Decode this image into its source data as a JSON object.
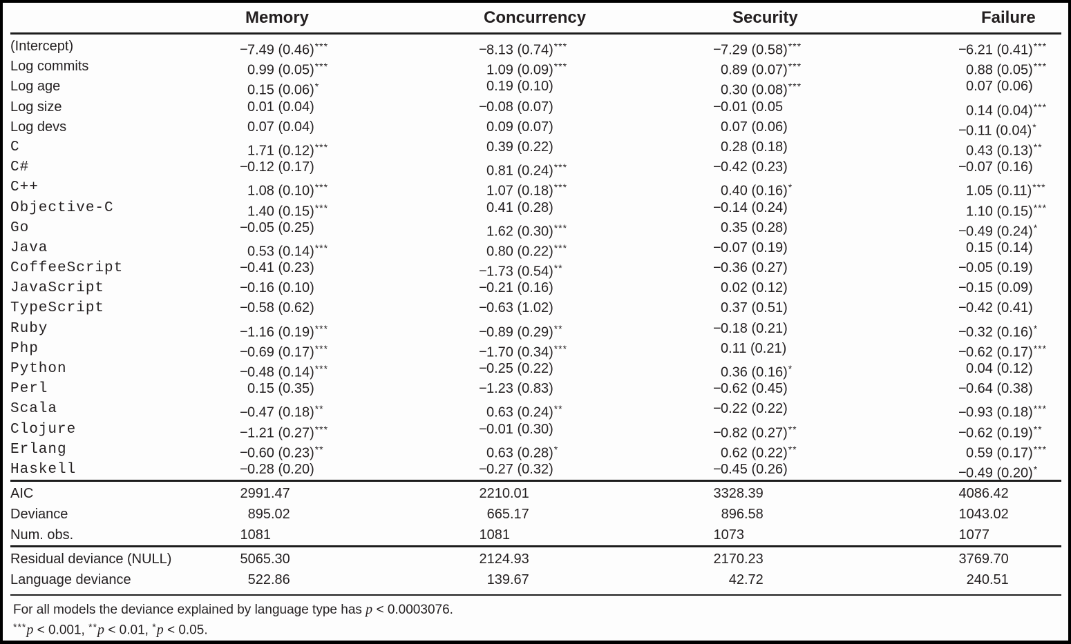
{
  "table": {
    "colors": {
      "text": "#231f20",
      "background": "#fdfdfd",
      "border": "#000000"
    },
    "columns": [
      "Memory",
      "Concurrency",
      "Security",
      "Failure"
    ],
    "coef_rows": [
      {
        "label": "(Intercept)",
        "mono": false,
        "values": [
          "−7.49 (0.46)***",
          "−8.13 (0.74)***",
          "−7.29 (0.58)***",
          "−6.21 (0.41)***"
        ]
      },
      {
        "label": "Log commits",
        "mono": false,
        "values": [
          "0.99 (0.05)***",
          "1.09 (0.09)***",
          "0.89 (0.07)***",
          "0.88 (0.05)***"
        ]
      },
      {
        "label": "Log age",
        "mono": false,
        "values": [
          "0.15 (0.06)*",
          "0.19 (0.10)",
          "0.30 (0.08)***",
          "0.07 (0.06)"
        ]
      },
      {
        "label": "Log size",
        "mono": false,
        "values": [
          "0.01 (0.04)",
          "−0.08 (0.07)",
          "−0.01 (0.05",
          "0.14 (0.04)***"
        ]
      },
      {
        "label": "Log devs",
        "mono": false,
        "values": [
          "0.07 (0.04)",
          "0.09 (0.07)",
          "0.07 (0.06)",
          "−0.11 (0.04)*"
        ]
      },
      {
        "label": "C",
        "mono": true,
        "values": [
          "1.71 (0.12)***",
          "0.39 (0.22)",
          "0.28 (0.18)",
          "0.43 (0.13)**"
        ]
      },
      {
        "label": "C#",
        "mono": true,
        "values": [
          "−0.12 (0.17)",
          "0.81 (0.24)***",
          "−0.42 (0.23)",
          "−0.07 (0.16)"
        ]
      },
      {
        "label": "C++",
        "mono": true,
        "values": [
          "1.08 (0.10)***",
          "1.07 (0.18)***",
          "0.40 (0.16)*",
          "1.05 (0.11)***"
        ]
      },
      {
        "label": "Objective-C",
        "mono": true,
        "values": [
          "1.40 (0.15)***",
          "0.41 (0.28)",
          "−0.14 (0.24)",
          "1.10 (0.15)***"
        ]
      },
      {
        "label": "Go",
        "mono": true,
        "values": [
          "−0.05 (0.25)",
          "1.62 (0.30)***",
          "0.35 (0.28)",
          "−0.49 (0.24)*"
        ]
      },
      {
        "label": "Java",
        "mono": true,
        "values": [
          "0.53 (0.14)***",
          "0.80 (0.22)***",
          "−0.07 (0.19)",
          "0.15 (0.14)"
        ]
      },
      {
        "label": "CoffeeScript",
        "mono": true,
        "values": [
          "−0.41 (0.23)",
          "−1.73 (0.54)**",
          "−0.36 (0.27)",
          "−0.05 (0.19)"
        ]
      },
      {
        "label": "JavaScript",
        "mono": true,
        "values": [
          "−0.16 (0.10)",
          "−0.21 (0.16)",
          "0.02 (0.12)",
          "−0.15 (0.09)"
        ]
      },
      {
        "label": "TypeScript",
        "mono": true,
        "values": [
          "−0.58 (0.62)",
          "−0.63 (1.02)",
          "0.37 (0.51)",
          "−0.42 (0.41)"
        ]
      },
      {
        "label": "Ruby",
        "mono": true,
        "values": [
          "−1.16 (0.19)***",
          "−0.89 (0.29)**",
          "−0.18 (0.21)",
          "−0.32 (0.16)*"
        ]
      },
      {
        "label": "Php",
        "mono": true,
        "values": [
          "−0.69 (0.17)***",
          "−1.70 (0.34)***",
          "0.11 (0.21)",
          "−0.62 (0.17)***"
        ]
      },
      {
        "label": "Python",
        "mono": true,
        "values": [
          "−0.48 (0.14)***",
          "−0.25 (0.22)",
          "0.36 (0.16)*",
          "0.04 (0.12)"
        ]
      },
      {
        "label": "Perl",
        "mono": true,
        "values": [
          "0.15 (0.35)",
          "−1.23 (0.83)",
          "−0.62 (0.45)",
          "−0.64 (0.38)"
        ]
      },
      {
        "label": "Scala",
        "mono": true,
        "values": [
          "−0.47 (0.18)**",
          "0.63 (0.24)**",
          "−0.22 (0.22)",
          "−0.93 (0.18)***"
        ]
      },
      {
        "label": "Clojure",
        "mono": true,
        "values": [
          "−1.21 (0.27)***",
          "−0.01 (0.30)",
          "−0.82 (0.27)**",
          "−0.62 (0.19)**"
        ]
      },
      {
        "label": "Erlang",
        "mono": true,
        "values": [
          "−0.60 (0.23)**",
          "0.63 (0.28)*",
          "0.62 (0.22)**",
          "0.59 (0.17)***"
        ]
      },
      {
        "label": "Haskell",
        "mono": true,
        "values": [
          "−0.28 (0.20)",
          "−0.27 (0.32)",
          "−0.45 (0.26)",
          "−0.49 (0.20)*"
        ]
      }
    ],
    "gof_rows": [
      {
        "label": "AIC",
        "values": [
          "2991.47",
          "2210.01",
          "3328.39",
          "4086.42"
        ]
      },
      {
        "label": "Deviance",
        "values": [
          "895.02",
          "665.17",
          "896.58",
          "1043.02"
        ]
      },
      {
        "label": "Num. obs.",
        "values": [
          "1081",
          "1081",
          "1073",
          "1077"
        ]
      }
    ],
    "deviance_rows": [
      {
        "label": "Residual deviance (NULL)",
        "values": [
          "5065.30",
          "2124.93",
          "2170.23",
          "3769.70"
        ]
      },
      {
        "label": "Language deviance",
        "values": [
          "522.86",
          "139.67",
          "42.72",
          "240.51"
        ]
      }
    ],
    "notes": [
      [
        {
          "t": "For all models the deviance explained by language type has "
        },
        {
          "t": "p",
          "i": true
        },
        {
          "t": " < 0.0003076."
        }
      ],
      [
        {
          "t": "***",
          "sup": true
        },
        {
          "t": "p",
          "i": true
        },
        {
          "t": " < 0.001, "
        },
        {
          "t": "**",
          "sup": true
        },
        {
          "t": "p",
          "i": true
        },
        {
          "t": " < 0.01, "
        },
        {
          "t": "*",
          "sup": true
        },
        {
          "t": "p",
          "i": true
        },
        {
          "t": " < 0.05."
        }
      ]
    ]
  }
}
